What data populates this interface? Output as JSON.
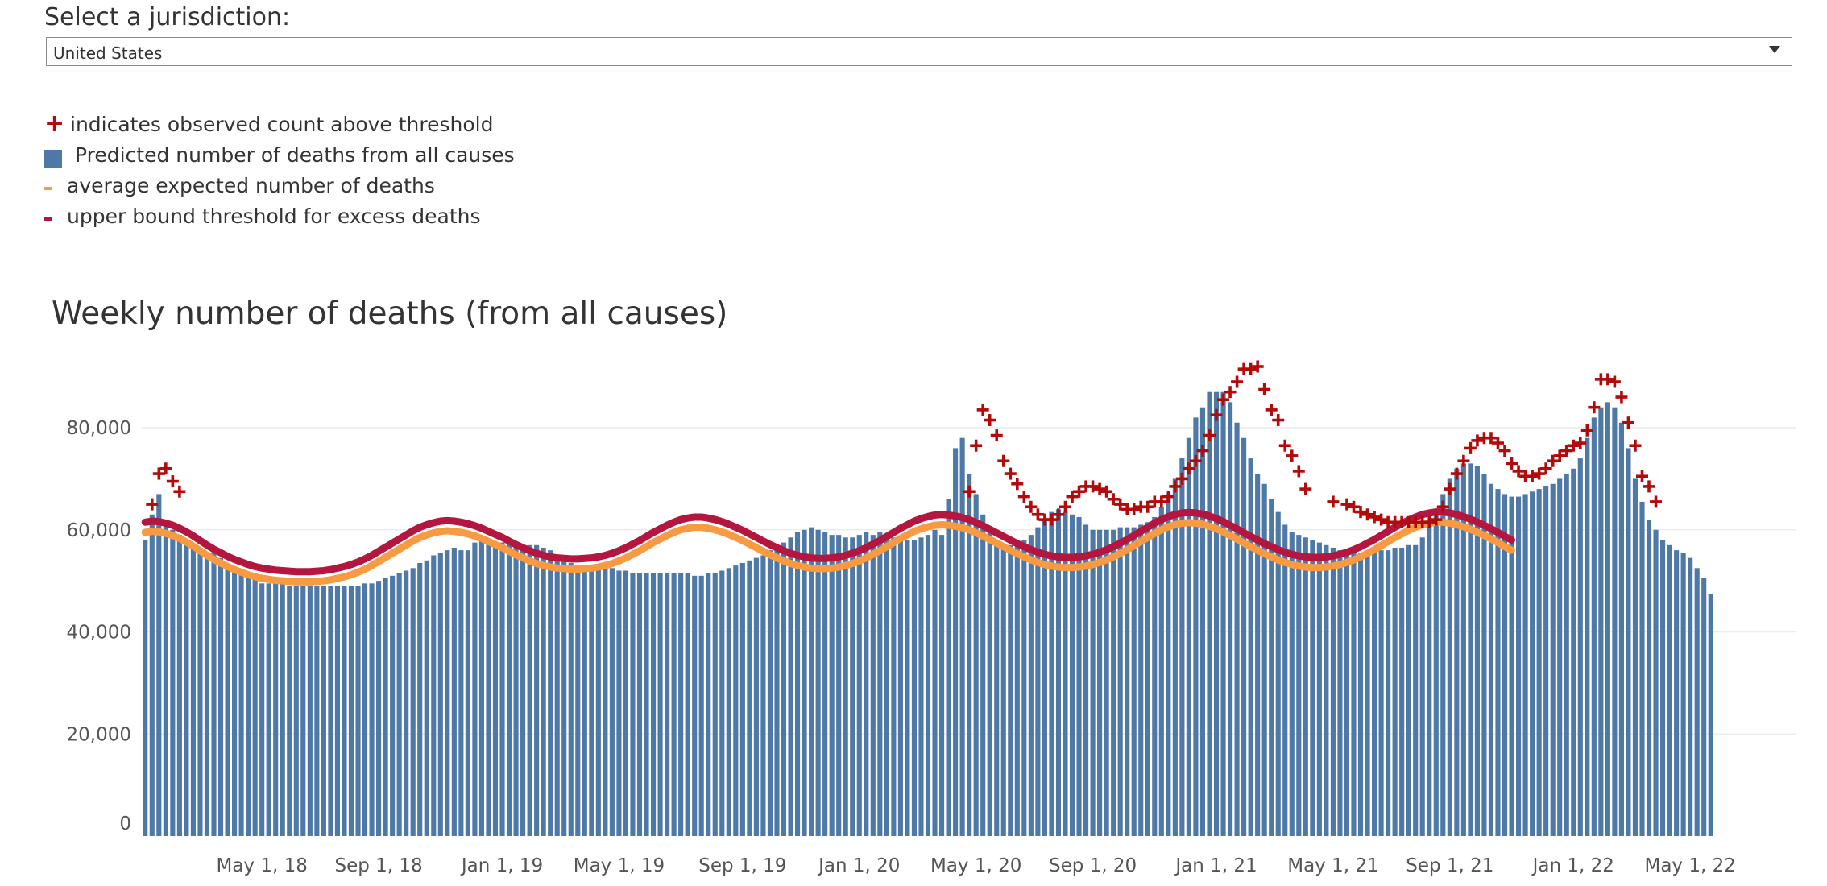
{
  "selector": {
    "label": "Select a jurisdiction:",
    "selected_value": "United States"
  },
  "legend": {
    "items": [
      {
        "symbol": "plus",
        "text": "indicates observed count above threshold",
        "color": "#b20b0b"
      },
      {
        "symbol": "square",
        "text": "Predicted number of deaths from all causes",
        "color": "#4e79a7"
      },
      {
        "symbol": "dash",
        "text": "average expected number of deaths",
        "color": "#f79a42"
      },
      {
        "symbol": "dash",
        "text": "upper bound threshold for excess deaths",
        "color": "#b5163f"
      }
    ]
  },
  "chart_data": {
    "type": "bar",
    "title": "Weekly number of deaths (from all causes)",
    "xlabel": "",
    "ylabel": "",
    "ylim": [
      0,
      92000
    ],
    "y_ticks": [
      {
        "value": 0,
        "label": "0"
      },
      {
        "value": 20000,
        "label": "20,000"
      },
      {
        "value": 40000,
        "label": "40,000"
      },
      {
        "value": 60000,
        "label": "60,000"
      },
      {
        "value": 80000,
        "label": "80,000"
      }
    ],
    "x_ticks": [
      {
        "week_index": 17,
        "label": "May 1, 18"
      },
      {
        "week_index": 34,
        "label": "Sep 1, 18"
      },
      {
        "week_index": 52,
        "label": "Jan 1, 19"
      },
      {
        "week_index": 69,
        "label": "May 1, 19"
      },
      {
        "week_index": 87,
        "label": "Sep 1, 19"
      },
      {
        "week_index": 104,
        "label": "Jan 1, 20"
      },
      {
        "week_index": 121,
        "label": "May 1, 20"
      },
      {
        "week_index": 138,
        "label": "Sep 1, 20"
      },
      {
        "week_index": 156,
        "label": "Jan 1, 21"
      },
      {
        "week_index": 173,
        "label": "May 1, 21"
      },
      {
        "week_index": 190,
        "label": "Sep 1, 21"
      },
      {
        "week_index": 208,
        "label": "Jan 1, 22"
      },
      {
        "week_index": 225,
        "label": "May 1, 22"
      }
    ],
    "colors": {
      "bars": "#4e79a7",
      "expected": "#f79a42",
      "threshold": "#b5163f",
      "plus": "#b20b0b",
      "grid": "#ececec"
    },
    "series": [
      {
        "name": "Predicted number of deaths from all causes",
        "type": "bar",
        "values": [
          58000,
          63000,
          67000,
          62000,
          60000,
          59000,
          57500,
          56500,
          56500,
          55500,
          55500,
          54500,
          52500,
          52000,
          51500,
          51000,
          50500,
          49500,
          49500,
          49500,
          49500,
          49000,
          49000,
          49000,
          49000,
          49000,
          49000,
          49000,
          49000,
          49000,
          49000,
          49000,
          49500,
          49500,
          50000,
          50500,
          51000,
          51500,
          52000,
          52500,
          53500,
          54000,
          55000,
          55500,
          56000,
          56500,
          56000,
          56000,
          57500,
          58000,
          58000,
          57500,
          57500,
          57500,
          57000,
          57000,
          57000,
          57000,
          56500,
          56000,
          55000,
          54000,
          53500,
          53000,
          53000,
          53000,
          53000,
          53000,
          52500,
          52000,
          52000,
          51500,
          51500,
          51500,
          51500,
          51500,
          51500,
          51500,
          51500,
          51500,
          51000,
          51000,
          51500,
          51500,
          52000,
          52500,
          53000,
          53500,
          54000,
          54500,
          55000,
          56000,
          57000,
          57500,
          58500,
          59500,
          60000,
          60500,
          60000,
          59500,
          59000,
          59000,
          58500,
          58500,
          59000,
          59500,
          59000,
          59500,
          59000,
          58500,
          58000,
          58000,
          58000,
          58500,
          59000,
          60000,
          59000,
          66000,
          76000,
          78000,
          71000,
          67000,
          63000,
          60000,
          58000,
          57000,
          57000,
          57500,
          58000,
          59000,
          60500,
          62000,
          63500,
          64000,
          63500,
          63000,
          62500,
          61000,
          60000,
          60000,
          60000,
          60000,
          60500,
          60500,
          60500,
          61000,
          61500,
          62500,
          64500,
          67000,
          70000,
          74000,
          78000,
          82000,
          84000,
          87000,
          87000,
          87000,
          85000,
          81000,
          78000,
          74000,
          71000,
          69000,
          66000,
          63500,
          61000,
          59500,
          59000,
          58500,
          58000,
          57500,
          57000,
          56500,
          56000,
          56000,
          56000,
          55500,
          55500,
          56000,
          56000,
          56000,
          56500,
          56500,
          57000,
          57000,
          58500,
          61000,
          64000,
          67000,
          70000,
          72000,
          73000,
          73000,
          72500,
          71000,
          69000,
          68000,
          67000,
          66500,
          66500,
          67000,
          67500,
          68000,
          68500,
          69000,
          70000,
          71000,
          72000,
          74000,
          78000,
          82000,
          84000,
          85000,
          84000,
          81000,
          76000,
          70000,
          65500,
          62000,
          60000,
          58000,
          57000,
          56000,
          55500,
          54500,
          52500,
          50500,
          47500
        ]
      },
      {
        "name": "average expected number of deaths",
        "type": "line",
        "values": [
          59500,
          59700,
          59600,
          59300,
          58900,
          58300,
          57600,
          56800,
          55900,
          55000,
          54200,
          53500,
          52800,
          52200,
          51700,
          51200,
          50800,
          50500,
          50300,
          50100,
          50000,
          49900,
          49800,
          49800,
          49800,
          49900,
          50000,
          50200,
          50500,
          50800,
          51200,
          51700,
          52300,
          53000,
          53800,
          54600,
          55400,
          56200,
          57000,
          57800,
          58500,
          59000,
          59400,
          59700,
          59800,
          59700,
          59500,
          59200,
          58800,
          58300,
          57700,
          57100,
          56500,
          55800,
          55100,
          54500,
          53900,
          53400,
          53000,
          52700,
          52500,
          52400,
          52300,
          52300,
          52400,
          52500,
          52700,
          53000,
          53400,
          53900,
          54500,
          55200,
          55900,
          56700,
          57500,
          58200,
          58900,
          59500,
          60000,
          60300,
          60500,
          60500,
          60300,
          60000,
          59600,
          59100,
          58500,
          57900,
          57200,
          56500,
          55800,
          55100,
          54500,
          53900,
          53400,
          53000,
          52700,
          52500,
          52400,
          52400,
          52500,
          52700,
          53000,
          53400,
          53900,
          54500,
          55200,
          55900,
          56700,
          57500,
          58300,
          59000,
          59700,
          60200,
          60600,
          60900,
          61000,
          60900,
          60700,
          60400,
          60000,
          59400,
          58800,
          58100,
          57400,
          56700,
          56000,
          55300,
          54700,
          54100,
          53600,
          53200,
          52900,
          52700,
          52600,
          52600,
          52700,
          52900,
          53200,
          53600,
          54100,
          54700,
          55400,
          56100,
          56900,
          57700,
          58500,
          59300,
          60000,
          60600,
          61000,
          61300,
          61400,
          61300,
          61100,
          60700,
          60200,
          59600,
          58900,
          58200,
          57400,
          56700,
          56000,
          55300,
          54700,
          54100,
          53600,
          53200,
          52900,
          52700,
          52600,
          52600,
          52700,
          52900,
          53200,
          53600,
          54100,
          54700,
          55400,
          56100,
          56900,
          57700,
          58500,
          59200,
          59900,
          60500,
          61000,
          61300,
          61500,
          61500,
          61300,
          61000,
          60600,
          60100,
          59500,
          58900,
          58200,
          57500,
          56700,
          56000
        ]
      },
      {
        "name": "upper bound threshold for excess deaths",
        "type": "line",
        "values": [
          61500,
          61700,
          61600,
          61300,
          60900,
          60300,
          59600,
          58800,
          57900,
          57000,
          56200,
          55500,
          54800,
          54200,
          53700,
          53200,
          52800,
          52500,
          52300,
          52100,
          52000,
          51900,
          51800,
          51800,
          51800,
          51900,
          52000,
          52200,
          52500,
          52800,
          53200,
          53700,
          54300,
          55000,
          55800,
          56600,
          57400,
          58200,
          59000,
          59800,
          60500,
          61000,
          61400,
          61700,
          61800,
          61700,
          61500,
          61200,
          60800,
          60300,
          59700,
          59100,
          58500,
          57800,
          57100,
          56500,
          55900,
          55400,
          55000,
          54700,
          54500,
          54400,
          54300,
          54300,
          54400,
          54500,
          54700,
          55000,
          55400,
          55900,
          56500,
          57200,
          57900,
          58700,
          59500,
          60200,
          60900,
          61500,
          62000,
          62300,
          62500,
          62500,
          62300,
          62000,
          61600,
          61100,
          60500,
          59900,
          59200,
          58500,
          57800,
          57100,
          56500,
          55900,
          55400,
          55000,
          54700,
          54500,
          54400,
          54400,
          54500,
          54700,
          55000,
          55400,
          55900,
          56500,
          57200,
          57900,
          58700,
          59500,
          60300,
          61000,
          61700,
          62200,
          62600,
          62900,
          63000,
          62900,
          62700,
          62400,
          62000,
          61400,
          60800,
          60100,
          59400,
          58700,
          58000,
          57300,
          56700,
          56100,
          55600,
          55200,
          54900,
          54700,
          54600,
          54600,
          54700,
          54900,
          55200,
          55600,
          56100,
          56700,
          57400,
          58100,
          58900,
          59700,
          60500,
          61300,
          62000,
          62600,
          63000,
          63300,
          63400,
          63300,
          63100,
          62700,
          62200,
          61600,
          60900,
          60200,
          59400,
          58700,
          58000,
          57300,
          56700,
          56100,
          55600,
          55200,
          54900,
          54700,
          54600,
          54600,
          54700,
          54900,
          55200,
          55600,
          56100,
          56700,
          57400,
          58100,
          58900,
          59700,
          60500,
          61200,
          61900,
          62500,
          63000,
          63300,
          63500,
          63500,
          63300,
          63000,
          62600,
          62100,
          61500,
          60900,
          60200,
          59500,
          58700,
          58000
        ]
      },
      {
        "name": "indicates observed count above threshold",
        "type": "scatter",
        "points": [
          [
            1,
            65000
          ],
          [
            2,
            71000
          ],
          [
            3,
            72000
          ],
          [
            4,
            69500
          ],
          [
            5,
            67500
          ],
          [
            120,
            67500
          ],
          [
            121,
            76500
          ],
          [
            122,
            83500
          ],
          [
            123,
            81500
          ],
          [
            124,
            78500
          ],
          [
            125,
            73500
          ],
          [
            126,
            71000
          ],
          [
            127,
            69000
          ],
          [
            128,
            66500
          ],
          [
            129,
            64500
          ],
          [
            130,
            63000
          ],
          [
            131,
            62000
          ],
          [
            132,
            62000
          ],
          [
            133,
            63000
          ],
          [
            134,
            64500
          ],
          [
            135,
            66500
          ],
          [
            136,
            67500
          ],
          [
            137,
            68500
          ],
          [
            138,
            68500
          ],
          [
            139,
            68000
          ],
          [
            140,
            67500
          ],
          [
            141,
            66000
          ],
          [
            142,
            65000
          ],
          [
            143,
            64000
          ],
          [
            144,
            64000
          ],
          [
            145,
            64500
          ],
          [
            146,
            64500
          ],
          [
            147,
            65500
          ],
          [
            148,
            65500
          ],
          [
            149,
            66500
          ],
          [
            150,
            68500
          ],
          [
            151,
            70000
          ],
          [
            152,
            72000
          ],
          [
            153,
            73500
          ],
          [
            154,
            75500
          ],
          [
            155,
            78500
          ],
          [
            156,
            82500
          ],
          [
            157,
            85500
          ],
          [
            158,
            87000
          ],
          [
            159,
            89000
          ],
          [
            160,
            91500
          ],
          [
            161,
            91500
          ],
          [
            162,
            92000
          ],
          [
            163,
            87500
          ],
          [
            164,
            83500
          ],
          [
            165,
            81500
          ],
          [
            166,
            76500
          ],
          [
            167,
            74500
          ],
          [
            168,
            71500
          ],
          [
            169,
            68000
          ],
          [
            173,
            65500
          ],
          [
            175,
            65000
          ],
          [
            176,
            64500
          ],
          [
            177,
            63500
          ],
          [
            178,
            63000
          ],
          [
            179,
            62500
          ],
          [
            180,
            62000
          ],
          [
            181,
            61500
          ],
          [
            182,
            61500
          ],
          [
            183,
            61500
          ],
          [
            184,
            61500
          ],
          [
            185,
            61500
          ],
          [
            186,
            61500
          ],
          [
            187,
            61500
          ],
          [
            188,
            62000
          ],
          [
            189,
            64500
          ],
          [
            190,
            68000
          ],
          [
            191,
            71000
          ],
          [
            192,
            73500
          ],
          [
            193,
            76000
          ],
          [
            194,
            77500
          ],
          [
            195,
            78000
          ],
          [
            196,
            78000
          ],
          [
            197,
            77000
          ],
          [
            198,
            75500
          ],
          [
            199,
            73000
          ],
          [
            200,
            71500
          ],
          [
            201,
            70500
          ],
          [
            202,
            70500
          ],
          [
            203,
            71000
          ],
          [
            204,
            72000
          ],
          [
            205,
            73500
          ],
          [
            206,
            74500
          ],
          [
            207,
            75500
          ],
          [
            208,
            76500
          ],
          [
            209,
            77000
          ],
          [
            210,
            79500
          ],
          [
            211,
            84000
          ],
          [
            212,
            89500
          ],
          [
            213,
            89500
          ],
          [
            214,
            89000
          ],
          [
            215,
            86000
          ],
          [
            216,
            81000
          ],
          [
            217,
            76500
          ],
          [
            218,
            70500
          ],
          [
            219,
            68500
          ],
          [
            220,
            65500
          ]
        ]
      }
    ]
  }
}
